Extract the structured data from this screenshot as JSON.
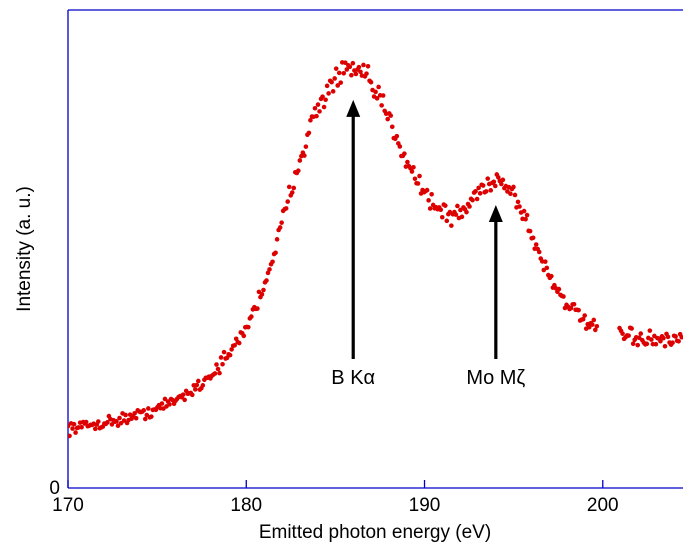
{
  "chart_data": {
    "type": "scatter",
    "xlabel": "Emitted photon energy (eV)",
    "ylabel": "Intensity (a. u.)",
    "xlim": [
      170,
      204.5
    ],
    "ylim": [
      0,
      100
    ],
    "xticks": [
      170,
      180,
      190,
      200
    ],
    "xtick_labels": [
      "170",
      "180",
      "190",
      "200"
    ],
    "yticks": [
      0
    ],
    "ytick_labels": [
      "0"
    ],
    "grid": false,
    "legend": "none",
    "marker_color": "#dd0000",
    "axis_color": "#0000cc",
    "series": [
      {
        "x": [
          170.0,
          170.5,
          171.0,
          171.5,
          172.0,
          172.5,
          173.0,
          173.5,
          174.0,
          174.5,
          175.0,
          175.5,
          176.0,
          176.5,
          177.0,
          177.5,
          178.0,
          178.5,
          179.0,
          179.5,
          180.0,
          180.5,
          181.0,
          181.5,
          182.0,
          182.5,
          183.0,
          183.5,
          184.0,
          184.5,
          185.0,
          185.5,
          186.0,
          186.5,
          187.0,
          187.5,
          188.0,
          188.5,
          189.0,
          189.5,
          190.0,
          190.5,
          191.0,
          191.5,
          192.0,
          192.5,
          193.0,
          193.5,
          194.0,
          194.5,
          195.0,
          195.5,
          196.0,
          196.5,
          197.0,
          197.5,
          198.0,
          198.5,
          199.0,
          199.5,
          201.0,
          201.5,
          202.0,
          202.5,
          203.0,
          203.5,
          204.0,
          204.5
        ],
        "y": [
          12.5,
          12.8,
          13.0,
          13.3,
          13.6,
          14.0,
          14.4,
          14.8,
          15.3,
          15.9,
          16.6,
          17.4,
          18.3,
          19.4,
          20.6,
          22.0,
          23.7,
          25.6,
          27.8,
          30.4,
          33.7,
          37.6,
          42.5,
          48.4,
          55.2,
          62.3,
          69.0,
          74.6,
          79.2,
          82.8,
          85.5,
          87.0,
          87.5,
          86.4,
          84.3,
          81.2,
          77.3,
          73.0,
          68.8,
          65.1,
          62.0,
          59.5,
          57.7,
          56.8,
          57.3,
          59.3,
          61.8,
          63.7,
          64.6,
          63.8,
          61.5,
          57.8,
          53.0,
          48.3,
          44.5,
          41.3,
          38.7,
          36.5,
          34.8,
          33.4,
          32.0,
          31.6,
          31.3,
          31.1,
          30.9,
          30.8,
          30.7,
          30.6
        ],
        "markers_plotted": "~400"
      }
    ],
    "annotations": [
      {
        "label": "B Kα",
        "x": 186.0,
        "arrow_from_y": 27,
        "arrow_to_y": 81
      },
      {
        "label": "Mo Mζ",
        "x": 194.0,
        "arrow_from_y": 27,
        "arrow_to_y": 59
      }
    ]
  }
}
